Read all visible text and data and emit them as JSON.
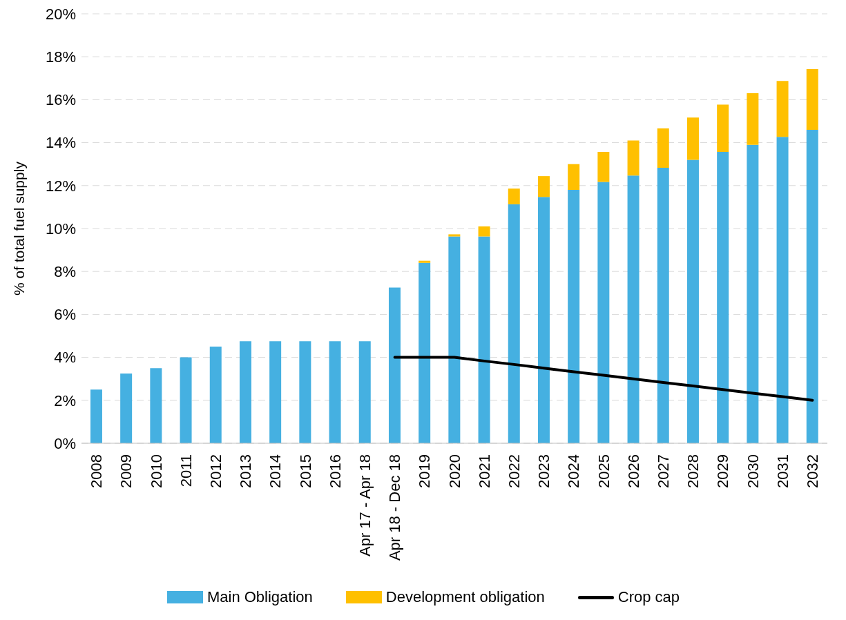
{
  "chart_data": {
    "type": "bar",
    "stacked": true,
    "ylabel": "% of total fuel supply",
    "categories": [
      "2008",
      "2009",
      "2010",
      "2011",
      "2012",
      "2013",
      "2014",
      "2015",
      "2016",
      "Apr 17 - Apr 18",
      "Apr 18 - Dec 18",
      "2019",
      "2020",
      "2021",
      "2022",
      "2023",
      "2024",
      "2025",
      "2026",
      "2027",
      "2028",
      "2029",
      "2030",
      "2031",
      "2032"
    ],
    "series": [
      {
        "name": "Main Obligation",
        "color": "#45b0e1",
        "values": [
          2.5,
          3.25,
          3.5,
          4.0,
          4.5,
          4.75,
          4.75,
          4.75,
          4.75,
          4.75,
          7.25,
          8.4,
          9.63,
          9.63,
          11.13,
          11.47,
          11.8,
          12.17,
          12.47,
          12.83,
          13.2,
          13.57,
          13.9,
          14.27,
          14.6
        ]
      },
      {
        "name": "Development obligation",
        "color": "#ffc000",
        "values": [
          null,
          null,
          null,
          null,
          null,
          null,
          null,
          null,
          null,
          null,
          null,
          0.1,
          0.1,
          0.47,
          0.73,
          0.97,
          1.2,
          1.4,
          1.63,
          1.83,
          1.97,
          2.2,
          2.4,
          2.6,
          2.83
        ]
      },
      {
        "name": "Crop cap",
        "type": "line",
        "color": "#000000",
        "values": [
          null,
          null,
          null,
          null,
          null,
          null,
          null,
          null,
          null,
          null,
          4.0,
          4.0,
          4.0,
          3.83,
          3.67,
          3.5,
          3.33,
          3.17,
          3.0,
          2.83,
          2.67,
          2.5,
          2.33,
          2.17,
          2.0
        ]
      }
    ],
    "ylim": [
      0,
      20
    ],
    "yticks": [
      {
        "value": 0,
        "label": "0%"
      },
      {
        "value": 2,
        "label": "2%"
      },
      {
        "value": 4,
        "label": "4%"
      },
      {
        "value": 6,
        "label": "6%"
      },
      {
        "value": 8,
        "label": "8%"
      },
      {
        "value": 10,
        "label": "10%"
      },
      {
        "value": 12,
        "label": "12%"
      },
      {
        "value": 14,
        "label": "14%"
      },
      {
        "value": 16,
        "label": "16%"
      },
      {
        "value": 18,
        "label": "18%"
      },
      {
        "value": 20,
        "label": "20%"
      }
    ],
    "grid": "y",
    "legend": "bottom",
    "marker": "none",
    "line_style": "solid"
  }
}
